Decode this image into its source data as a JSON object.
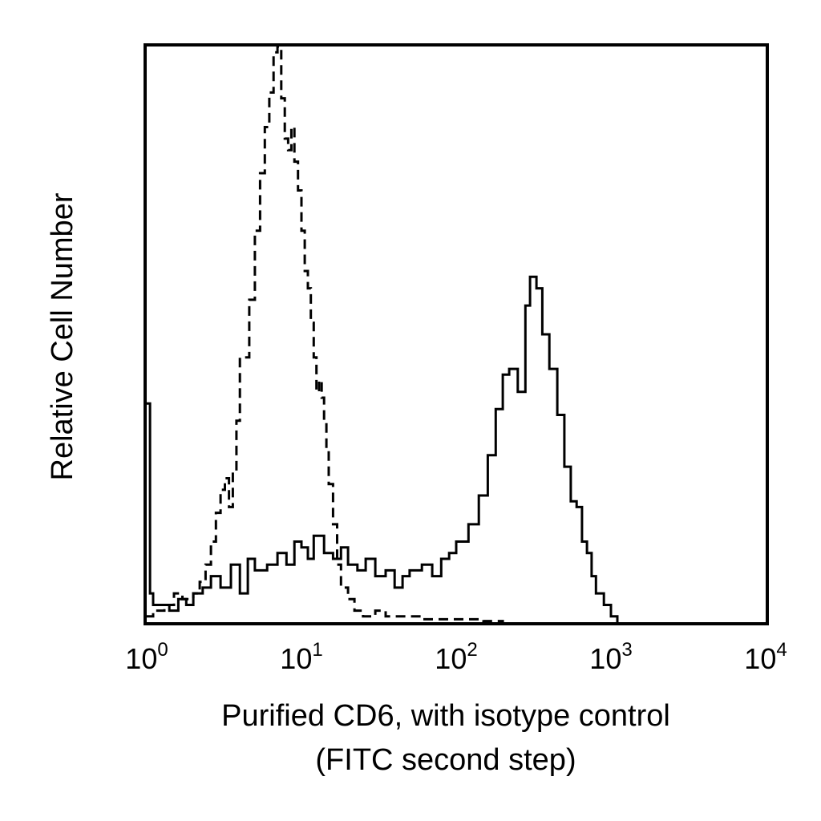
{
  "chart_data": {
    "type": "line",
    "title": "",
    "xlabel": "Purified CD6, with isotype control",
    "xlabel_line2": "(FITC second step)",
    "ylabel": "Relative Cell Number",
    "x_scale": "log",
    "xlim": [
      1,
      10000
    ],
    "ylim": [
      0,
      100
    ],
    "grid": false,
    "legend": "none",
    "x_ticks": [
      {
        "value": 1,
        "base": "10",
        "exp": "0"
      },
      {
        "value": 10,
        "base": "10",
        "exp": "1"
      },
      {
        "value": 100,
        "base": "10",
        "exp": "2"
      },
      {
        "value": 1000,
        "base": "10",
        "exp": "3"
      },
      {
        "value": 10000,
        "base": "10",
        "exp": "4"
      }
    ],
    "series": [
      {
        "style": "dashed",
        "color": "#000000",
        "x": [
          1.0,
          1.1,
          1.3,
          1.5,
          1.7,
          2.0,
          2.2,
          2.4,
          2.6,
          2.8,
          3.0,
          3.2,
          3.4,
          3.6,
          3.8,
          4.0,
          4.3,
          4.6,
          5.0,
          5.4,
          5.8,
          6.2,
          6.6,
          7.0,
          7.4,
          7.8,
          8.2,
          8.6,
          9.0,
          9.5,
          10.0,
          10.5,
          11.0,
          11.5,
          12.0,
          12.5,
          13.0,
          13.5,
          14.0,
          14.5,
          15.0,
          16.0,
          17.0,
          18.0,
          20.0,
          22.0,
          25.0,
          30.0,
          35.0,
          40.0,
          50.0,
          60.0,
          80.0,
          100.0,
          150.0,
          200.0
        ],
        "y": [
          1,
          2,
          3,
          5,
          4,
          5,
          7,
          10,
          14,
          19,
          23,
          25,
          20,
          26,
          35,
          46,
          46,
          56,
          68,
          78,
          86,
          92,
          99,
          100,
          91,
          84,
          82,
          86,
          80,
          75,
          68,
          61,
          58,
          52,
          46,
          40,
          42,
          39,
          35,
          30,
          24,
          17,
          10,
          6,
          4,
          2,
          1,
          2,
          1,
          1,
          1,
          0.5,
          0.5,
          0.5,
          0.2,
          0
        ]
      },
      {
        "style": "solid",
        "color": "#000000",
        "x": [
          1.0,
          1.05,
          1.1,
          1.2,
          1.4,
          1.6,
          1.8,
          2.0,
          2.3,
          2.6,
          3.0,
          3.5,
          4.0,
          4.5,
          5.0,
          6.0,
          7.0,
          8.0,
          9.0,
          10.0,
          11.0,
          12.0,
          14.0,
          16.0,
          18.0,
          20.0,
          23.0,
          26.0,
          30.0,
          35.0,
          40.0,
          45.0,
          50.0,
          60.0,
          70.0,
          80.0,
          90.0,
          100.0,
          120.0,
          140.0,
          160.0,
          180.0,
          200.0,
          220.0,
          250.0,
          280.0,
          300.0,
          330.0,
          360.0,
          400.0,
          450.0,
          500.0,
          550.0,
          600.0,
          650.0,
          700.0,
          750.0,
          800.0,
          900.0,
          1000.0,
          1100.0
        ],
        "y": [
          38,
          5,
          3,
          3,
          2,
          4,
          3,
          5,
          6,
          8,
          6,
          10,
          5,
          11,
          9,
          10,
          12,
          10,
          14,
          13,
          11,
          15,
          12,
          11,
          13,
          10,
          9,
          11,
          8,
          9,
          6,
          8,
          9,
          10,
          8,
          11,
          12,
          14,
          17,
          22,
          29,
          37,
          43,
          44,
          40,
          55,
          60,
          58,
          50,
          44,
          36,
          27,
          21,
          20,
          14,
          12,
          8,
          5,
          3,
          1,
          0
        ]
      }
    ]
  }
}
